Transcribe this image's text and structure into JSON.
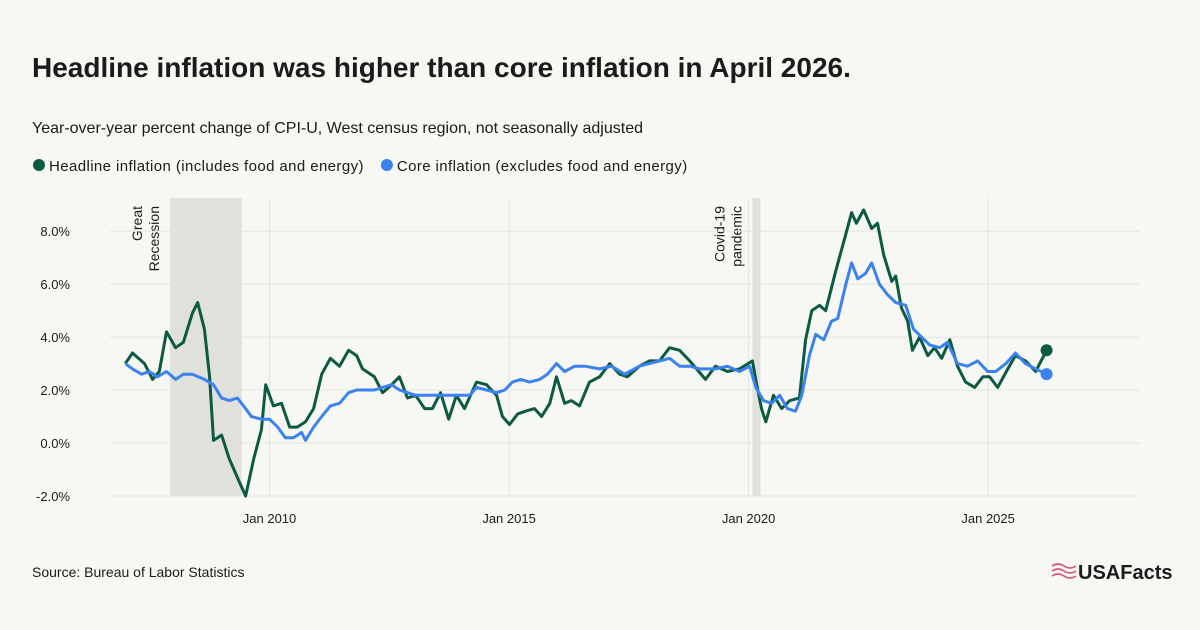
{
  "chart_data": {
    "type": "line",
    "title": "Headline inflation was higher than core inflation in April 2026.",
    "subtitle": "Year-over-year percent change of CPI-U, West census region, not seasonally adjusted",
    "xlim": [
      2006.67,
      2028.17
    ],
    "xticks": [
      {
        "value": 2010,
        "label": "Jan 2010"
      },
      {
        "value": 2015,
        "label": "Jan 2015"
      },
      {
        "value": 2020,
        "label": "Jan 2020"
      },
      {
        "value": 2025,
        "label": "Jan 2025"
      }
    ],
    "ylim": [
      -2,
      9.25
    ],
    "yticks": [
      {
        "value": -2,
        "label": "-2.0%"
      },
      {
        "value": 0,
        "label": "0.0%"
      },
      {
        "value": 2,
        "label": "2.0%"
      },
      {
        "value": 4,
        "label": "4.0%"
      },
      {
        "value": 6,
        "label": "6.0%"
      },
      {
        "value": 8,
        "label": "8.0%"
      }
    ],
    "grid": true,
    "shaded_periods": [
      {
        "label_lines": [
          "Great",
          "Recession"
        ],
        "start": 2007.92,
        "end": 2009.42
      },
      {
        "label_lines": [
          "Covid-19",
          "pandemic"
        ],
        "start": 2020.08,
        "end": 2020.25
      }
    ],
    "series": [
      {
        "name": "Headline inflation (includes food and energy)",
        "color": "#0d5a42",
        "x": [
          2006.99,
          2007.14,
          2007.39,
          2007.56,
          2007.7,
          2007.85,
          2008.04,
          2008.2,
          2008.39,
          2008.5,
          2008.64,
          2008.75,
          2008.83,
          2009.0,
          2009.16,
          2009.33,
          2009.5,
          2009.67,
          2009.83,
          2009.92,
          2010.08,
          2010.25,
          2010.42,
          2010.58,
          2010.75,
          2010.92,
          2011.09,
          2011.27,
          2011.46,
          2011.65,
          2011.82,
          2011.94,
          2012.19,
          2012.36,
          2012.55,
          2012.71,
          2012.88,
          2013.05,
          2013.24,
          2013.4,
          2013.57,
          2013.74,
          2013.9,
          2014.07,
          2014.32,
          2014.53,
          2014.74,
          2014.86,
          2015.01,
          2015.18,
          2015.34,
          2015.53,
          2015.68,
          2015.85,
          2015.99,
          2016.16,
          2016.3,
          2016.47,
          2016.68,
          2016.89,
          2017.1,
          2017.31,
          2017.47,
          2017.72,
          2017.93,
          2018.14,
          2018.35,
          2018.56,
          2018.77,
          2019.1,
          2019.31,
          2019.56,
          2019.81,
          2020.08,
          2020.17,
          2020.27,
          2020.36,
          2020.52,
          2020.69,
          2020.86,
          2021.06,
          2021.19,
          2021.32,
          2021.48,
          2021.61,
          2021.82,
          2022.03,
          2022.15,
          2022.25,
          2022.4,
          2022.57,
          2022.69,
          2022.82,
          2022.99,
          2023.07,
          2023.19,
          2023.32,
          2023.42,
          2023.57,
          2023.74,
          2023.88,
          2024.03,
          2024.2,
          2024.36,
          2024.53,
          2024.72,
          2024.89,
          2025.03,
          2025.2,
          2025.41,
          2025.57,
          2025.78,
          2025.99,
          2026.22
        ],
        "values": [
          3.0,
          3.4,
          3.0,
          2.4,
          2.7,
          4.2,
          3.6,
          3.8,
          4.9,
          5.3,
          4.3,
          2.5,
          0.1,
          0.3,
          -0.6,
          -1.3,
          -2.0,
          -0.6,
          0.5,
          2.2,
          1.4,
          1.5,
          0.6,
          0.6,
          0.8,
          1.3,
          2.6,
          3.2,
          2.9,
          3.5,
          3.3,
          2.8,
          2.5,
          1.9,
          2.2,
          2.5,
          1.7,
          1.8,
          1.3,
          1.3,
          1.9,
          0.9,
          1.8,
          1.3,
          2.3,
          2.2,
          1.8,
          1.0,
          0.7,
          1.1,
          1.2,
          1.3,
          1.0,
          1.5,
          2.5,
          1.5,
          1.6,
          1.4,
          2.3,
          2.5,
          3.0,
          2.6,
          2.5,
          2.9,
          3.1,
          3.1,
          3.6,
          3.5,
          3.1,
          2.4,
          2.9,
          2.7,
          2.8,
          3.1,
          2.2,
          1.3,
          0.8,
          1.8,
          1.3,
          1.6,
          1.7,
          3.9,
          5.0,
          5.2,
          5.0,
          6.5,
          7.9,
          8.7,
          8.3,
          8.8,
          8.1,
          8.3,
          7.1,
          6.1,
          6.3,
          5.1,
          4.6,
          3.5,
          4.0,
          3.3,
          3.6,
          3.2,
          3.9,
          2.9,
          2.3,
          2.1,
          2.5,
          2.5,
          2.1,
          2.8,
          3.3,
          3.1,
          2.7,
          3.5
        ]
      },
      {
        "name": "Core inflation (excludes food and energy)",
        "color": "#3b82f0",
        "x": [
          2006.99,
          2007.14,
          2007.33,
          2007.49,
          2007.66,
          2007.85,
          2008.04,
          2008.2,
          2008.39,
          2008.64,
          2008.83,
          2009.0,
          2009.16,
          2009.33,
          2009.5,
          2009.62,
          2009.83,
          2010.0,
          2010.17,
          2010.33,
          2010.5,
          2010.67,
          2010.75,
          2010.92,
          2011.09,
          2011.27,
          2011.46,
          2011.65,
          2011.82,
          2011.98,
          2012.19,
          2012.36,
          2012.55,
          2012.71,
          2012.88,
          2013.05,
          2013.24,
          2013.4,
          2013.57,
          2013.9,
          2014.18,
          2014.32,
          2014.53,
          2014.74,
          2014.91,
          2015.07,
          2015.24,
          2015.43,
          2015.64,
          2015.8,
          2015.99,
          2016.16,
          2016.37,
          2016.58,
          2016.89,
          2017.14,
          2017.41,
          2017.72,
          2017.93,
          2018.14,
          2018.35,
          2018.56,
          2018.77,
          2018.98,
          2019.31,
          2019.56,
          2019.81,
          2020.02,
          2020.15,
          2020.31,
          2020.48,
          2020.65,
          2020.81,
          2020.98,
          2021.11,
          2021.27,
          2021.4,
          2021.57,
          2021.73,
          2021.86,
          2022.03,
          2022.15,
          2022.28,
          2022.44,
          2022.57,
          2022.73,
          2022.9,
          2023.07,
          2023.28,
          2023.44,
          2023.61,
          2023.78,
          2023.99,
          2024.15,
          2024.36,
          2024.57,
          2024.78,
          2024.99,
          2025.16,
          2025.37,
          2025.57,
          2025.78,
          2025.99,
          2026.22
        ],
        "values": [
          3.0,
          2.8,
          2.6,
          2.7,
          2.5,
          2.7,
          2.4,
          2.6,
          2.6,
          2.4,
          2.2,
          1.7,
          1.6,
          1.7,
          1.3,
          1.0,
          0.9,
          0.9,
          0.6,
          0.2,
          0.2,
          0.4,
          0.1,
          0.6,
          1.0,
          1.4,
          1.5,
          1.9,
          2.0,
          2.0,
          2.0,
          2.1,
          2.2,
          2.0,
          1.9,
          1.8,
          1.8,
          1.8,
          1.8,
          1.8,
          1.8,
          2.1,
          2.0,
          1.9,
          2.0,
          2.3,
          2.4,
          2.3,
          2.4,
          2.6,
          3.0,
          2.7,
          2.9,
          2.9,
          2.8,
          2.9,
          2.6,
          2.9,
          3.0,
          3.1,
          3.2,
          2.9,
          2.9,
          2.8,
          2.8,
          2.9,
          2.7,
          2.9,
          2.1,
          1.6,
          1.5,
          1.8,
          1.3,
          1.2,
          1.8,
          3.3,
          4.1,
          3.9,
          4.6,
          4.7,
          6.0,
          6.8,
          6.2,
          6.4,
          6.8,
          6.0,
          5.6,
          5.3,
          5.2,
          4.3,
          4.0,
          3.7,
          3.6,
          3.8,
          3.0,
          2.9,
          3.1,
          2.7,
          2.7,
          3.0,
          3.4,
          3.0,
          2.8,
          2.6
        ]
      }
    ]
  },
  "source": "Source: Bureau of Labor Statistics",
  "brand": "USAFacts"
}
